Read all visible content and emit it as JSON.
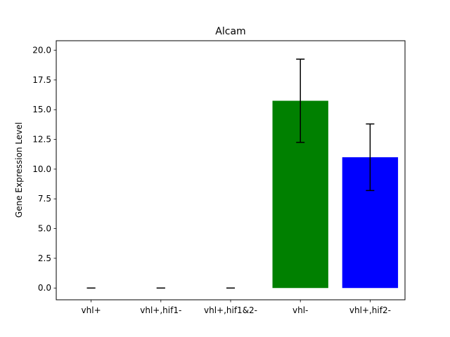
{
  "chart_data": {
    "type": "bar",
    "title": "Alcam",
    "xlabel": "",
    "ylabel": "Gene Expression Level",
    "categories": [
      "vhl+",
      "vhl+,hif1-",
      "vhl+,hif1&2-",
      "vhl-",
      "vhl+,hif2-"
    ],
    "values": [
      0.0,
      0.0,
      0.0,
      15.75,
      11.0
    ],
    "errors": [
      0.0,
      0.0,
      0.0,
      3.5,
      2.8
    ],
    "colors": [
      "#ff0000",
      "#ffa500",
      "#ffff00",
      "#008000",
      "#0000ff"
    ],
    "ylim": [
      -0.99,
      20.8
    ],
    "yticks": [
      0.0,
      2.5,
      5.0,
      7.5,
      10.0,
      12.5,
      15.0,
      17.5,
      20.0
    ],
    "ytick_labels": [
      "0.0",
      "2.5",
      "5.0",
      "7.5",
      "10.0",
      "12.5",
      "15.0",
      "17.5",
      "20.0"
    ],
    "grid": false,
    "legend": "none"
  }
}
